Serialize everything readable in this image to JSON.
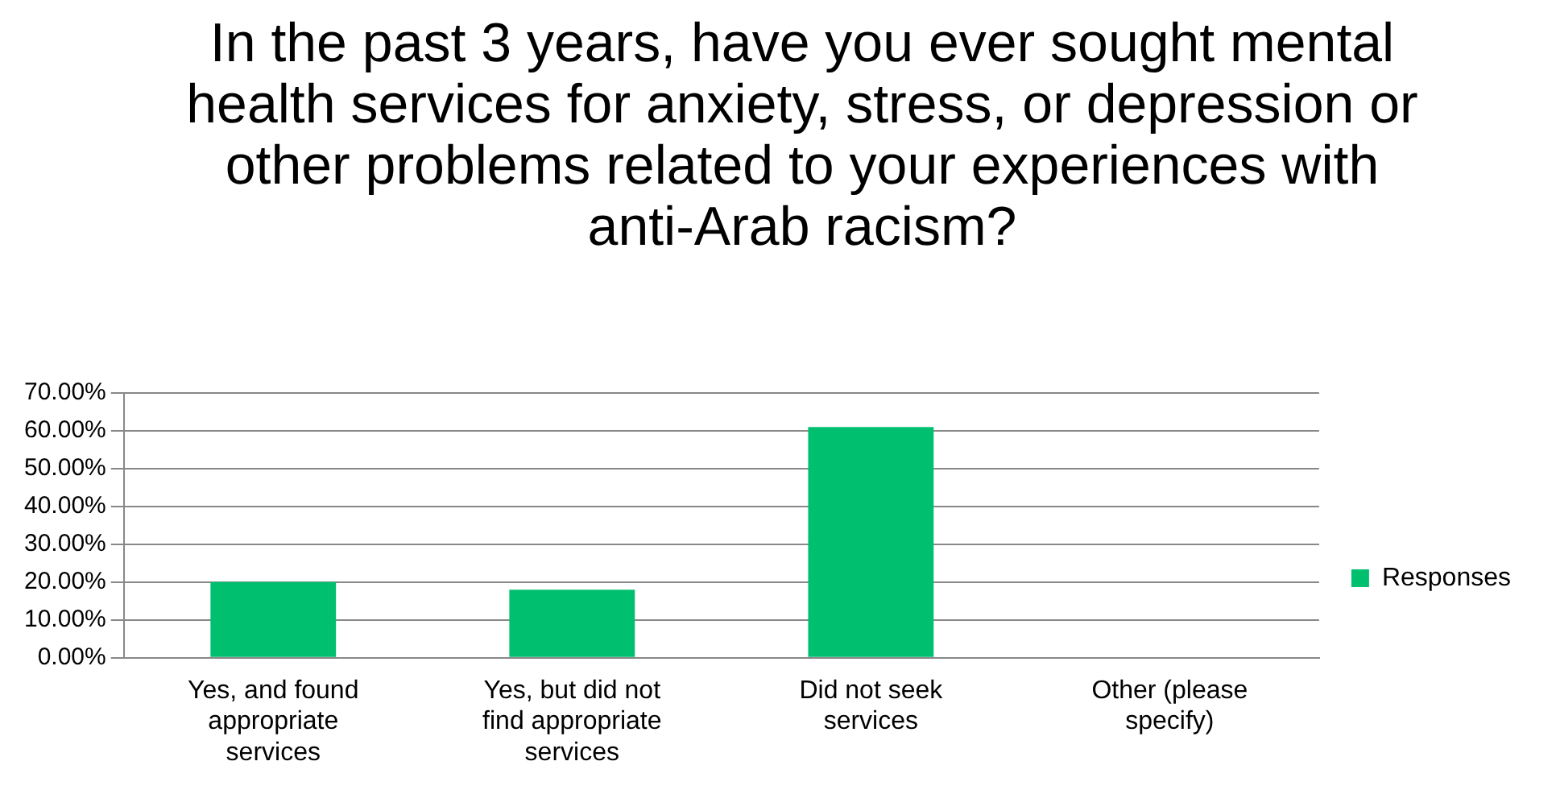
{
  "chart_data": {
    "type": "bar",
    "title": "In the past 3 years, have you ever sought mental health services for anxiety, stress, or depression or other problems related to your experiences with anti-Arab racism?",
    "categories": [
      "Yes, and found appropriate services",
      "Yes, but did not find appropriate services",
      "Did not seek services",
      "Other (please specify)"
    ],
    "series": [
      {
        "name": "Responses",
        "color": "#00c070",
        "values": [
          20,
          18,
          61,
          0
        ]
      }
    ],
    "ylim": [
      0,
      70
    ],
    "yticks": [
      {
        "value": 0,
        "label": "0.00%"
      },
      {
        "value": 10,
        "label": "10.00%"
      },
      {
        "value": 20,
        "label": "20.00%"
      },
      {
        "value": 30,
        "label": "30.00%"
      },
      {
        "value": 40,
        "label": "40.00%"
      },
      {
        "value": 50,
        "label": "50.00%"
      },
      {
        "value": 60,
        "label": "60.00%"
      },
      {
        "value": 70,
        "label": "70.00%"
      }
    ],
    "grid": "y",
    "legend": "right"
  }
}
